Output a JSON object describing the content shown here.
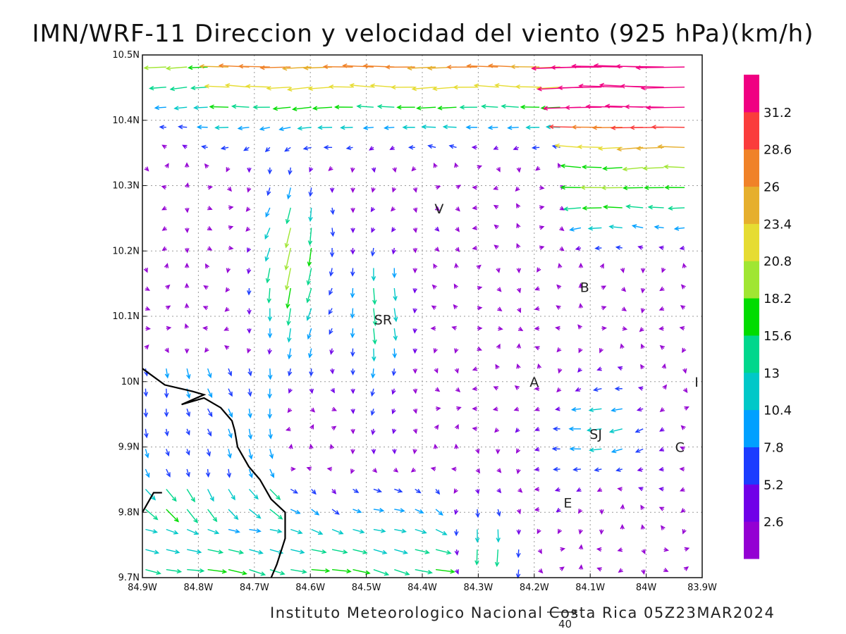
{
  "title": "IMN/WRF-11 Direccion y velocidad del viento (925 hPa)(km/h)",
  "footer": "Instituto Meteorologico Nacional Costa Rica 05Z23MAR2024",
  "reference_vector": {
    "label": "40",
    "value": 40
  },
  "axes": {
    "lon_range": [
      -84.9,
      -83.9
    ],
    "lat_range": [
      9.7,
      10.5
    ],
    "x_ticks": [
      {
        "value": -84.9,
        "label": "84.9W"
      },
      {
        "value": -84.8,
        "label": "84.8W"
      },
      {
        "value": -84.7,
        "label": "84.7W"
      },
      {
        "value": -84.6,
        "label": "84.6W"
      },
      {
        "value": -84.5,
        "label": "84.5W"
      },
      {
        "value": -84.4,
        "label": "84.4W"
      },
      {
        "value": -84.3,
        "label": "84.3W"
      },
      {
        "value": -84.2,
        "label": "84.2W"
      },
      {
        "value": -84.1,
        "label": "84.1W"
      },
      {
        "value": -84.0,
        "label": "84W"
      },
      {
        "value": -83.9,
        "label": "83.9W"
      }
    ],
    "y_ticks": [
      {
        "value": 9.7,
        "label": "9.7N"
      },
      {
        "value": 9.8,
        "label": "9.8N"
      },
      {
        "value": 9.9,
        "label": "9.9N"
      },
      {
        "value": 10.0,
        "label": "10N"
      },
      {
        "value": 10.1,
        "label": "10.1N"
      },
      {
        "value": 10.2,
        "label": "10.2N"
      },
      {
        "value": 10.3,
        "label": "10.3N"
      },
      {
        "value": 10.4,
        "label": "10.4N"
      },
      {
        "value": 10.5,
        "label": "10.5N"
      }
    ],
    "grid": true
  },
  "colorbar": {
    "labels": [
      "2.6",
      "5.2",
      "7.8",
      "10.4",
      "13",
      "15.6",
      "18.2",
      "20.8",
      "23.4",
      "26",
      "28.6",
      "31.2"
    ],
    "thresholds": [
      2.6,
      5.2,
      7.8,
      10.4,
      13,
      15.6,
      18.2,
      20.8,
      23.4,
      26,
      28.6,
      31.2
    ],
    "colors": [
      "#9400d3",
      "#7000e8",
      "#1c3cff",
      "#00a0ff",
      "#00c8c8",
      "#00d78c",
      "#00dc00",
      "#a0e632",
      "#e6dc32",
      "#e6af2d",
      "#f08228",
      "#fa3c3c",
      "#f00082"
    ]
  },
  "station_labels": [
    {
      "text": "V",
      "lon": -84.37,
      "lat": 10.265
    },
    {
      "text": "B",
      "lon": -84.11,
      "lat": 10.145
    },
    {
      "text": "SR",
      "lon": -84.47,
      "lat": 10.095
    },
    {
      "text": "A",
      "lon": -84.2,
      "lat": 10.0
    },
    {
      "text": "I",
      "lon": -83.91,
      "lat": 10.0
    },
    {
      "text": "SJ",
      "lon": -84.09,
      "lat": 9.92
    },
    {
      "text": "C",
      "lon": -83.94,
      "lat": 9.9
    },
    {
      "text": "E",
      "lon": -84.14,
      "lat": 9.815
    }
  ],
  "coastline": [
    [
      [
        -84.9,
        10.02
      ],
      [
        -84.86,
        9.995
      ],
      [
        -84.81,
        9.985
      ],
      [
        -84.79,
        9.98
      ],
      [
        -84.83,
        9.965
      ],
      [
        -84.79,
        9.975
      ],
      [
        -84.76,
        9.96
      ],
      [
        -84.74,
        9.94
      ],
      [
        -84.735,
        9.925
      ],
      [
        -84.73,
        9.9
      ],
      [
        -84.71,
        9.87
      ],
      [
        -84.69,
        9.85
      ],
      [
        -84.67,
        9.82
      ],
      [
        -84.645,
        9.8
      ],
      [
        -84.645,
        9.76
      ],
      [
        -84.66,
        9.72
      ],
      [
        -84.67,
        9.7
      ]
    ],
    [
      [
        -84.9,
        9.8
      ],
      [
        -84.88,
        9.83
      ],
      [
        -84.865,
        9.83
      ]
    ]
  ]
}
